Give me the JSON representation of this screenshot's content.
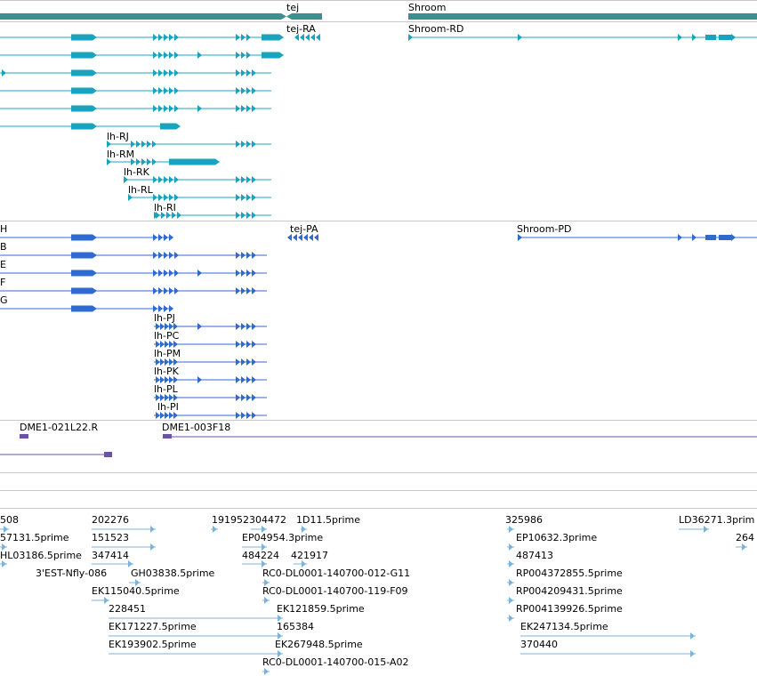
{
  "colors": {
    "gene": "#3a8f8f",
    "transcript": "#18a4bf",
    "cds": "#2f6bcf",
    "clone": "#6b52a8",
    "est": "#7ab3dd",
    "divider": "#c8c8c8"
  },
  "genes": [
    {
      "label": "tej"
    },
    {
      "label": "Shroom"
    }
  ],
  "transcripts": [
    {
      "label": "tej-RA"
    },
    {
      "label": "Shroom-RD"
    },
    {
      "label": "lh-RJ"
    },
    {
      "label": "lh-RM"
    },
    {
      "label": "lh-RK"
    },
    {
      "label": "lh-RL"
    },
    {
      "label": "lh-RI"
    }
  ],
  "proteins": [
    {
      "label": "H"
    },
    {
      "label": "B"
    },
    {
      "label": "E"
    },
    {
      "label": "F"
    },
    {
      "label": "G"
    },
    {
      "label": "tej-PA"
    },
    {
      "label": "Shroom-PD"
    },
    {
      "label": "lh-PJ"
    },
    {
      "label": "lh-PC"
    },
    {
      "label": "lh-PM"
    },
    {
      "label": "lh-PK"
    },
    {
      "label": "lh-PL"
    },
    {
      "label": "lh-PI"
    }
  ],
  "clones": [
    {
      "label": "DME1-021L22.R"
    },
    {
      "label": "DME1-003F18"
    }
  ],
  "ests": [
    {
      "label": "508"
    },
    {
      "label": "202276"
    },
    {
      "label": "191952304472"
    },
    {
      "label": "1D11.5prime"
    },
    {
      "label": "325986"
    },
    {
      "label": "LD36271.3prim"
    },
    {
      "label": "57131.5prime"
    },
    {
      "label": "151523"
    },
    {
      "label": "EP04954.3prime"
    },
    {
      "label": "EP10632.3prime"
    },
    {
      "label": "264"
    },
    {
      "label": "HL03186.5prime"
    },
    {
      "label": "347414"
    },
    {
      "label": "484224"
    },
    {
      "label": "421917"
    },
    {
      "label": "487413"
    },
    {
      "label": "3'EST-Nfly-086"
    },
    {
      "label": "GH03838.5prime"
    },
    {
      "label": "RC0-DL0001-140700-012-G11"
    },
    {
      "label": "RP004372855.5prime"
    },
    {
      "label": "EK115040.5prime"
    },
    {
      "label": "RC0-DL0001-140700-119-F09"
    },
    {
      "label": "RP004209431.5prime"
    },
    {
      "label": "228451"
    },
    {
      "label": "EK121859.5prime"
    },
    {
      "label": "RP004139926.5prime"
    },
    {
      "label": "EK171227.5prime"
    },
    {
      "label": "165384"
    },
    {
      "label": "EK247134.5prime"
    },
    {
      "label": "EK193902.5prime"
    },
    {
      "label": "EK267948.5prime"
    },
    {
      "label": "370440"
    },
    {
      "label": "RC0-DL0001-140700-015-A02"
    }
  ]
}
